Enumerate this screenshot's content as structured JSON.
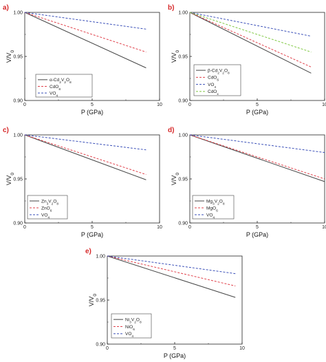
{
  "chart_data": [
    {
      "type": "line",
      "panel": "a)",
      "xlabel": "P (GPa)",
      "ylabel": "V/V",
      "ylabel_sub": "0",
      "xlim": [
        0,
        10
      ],
      "ylim": [
        0.9,
        1.0
      ],
      "xticks": [
        "0",
        "5",
        "10"
      ],
      "yticks": [
        "0.90",
        "0.95",
        "1.00"
      ],
      "legend_position": "bottom-right",
      "series": [
        {
          "name": "α-Cd",
          "sub": "2",
          "name2": "V",
          "sub2": "2",
          "name3": "O",
          "sub3": "8",
          "color": "#444444",
          "dash": "",
          "x": [
            0,
            9
          ],
          "y": [
            1.0,
            0.937
          ]
        },
        {
          "name": "CdO",
          "sub": "8",
          "name2": "",
          "sub2": "",
          "name3": "",
          "sub3": "",
          "color": "#e0404a",
          "dash": "3,2",
          "x": [
            0,
            9
          ],
          "y": [
            1.0,
            0.955
          ]
        },
        {
          "name": "VO",
          "sub": "4",
          "name2": "",
          "sub2": "",
          "name3": "",
          "sub3": "",
          "color": "#3a4fb8",
          "dash": "3,2",
          "x": [
            0,
            9
          ],
          "y": [
            1.0,
            0.981
          ]
        }
      ]
    },
    {
      "type": "line",
      "panel": "b)",
      "xlabel": "P (GPa)",
      "ylabel": "V/V",
      "ylabel_sub": "0",
      "xlim": [
        0,
        10
      ],
      "ylim": [
        0.9,
        1.0
      ],
      "xticks": [
        "0",
        "5",
        "10"
      ],
      "yticks": [
        "0.90",
        "0.95",
        "1.00"
      ],
      "legend_position": "bottom-right",
      "series": [
        {
          "name": "β-Cd",
          "sub": "2",
          "name2": "V",
          "sub2": "2",
          "name3": "O",
          "sub3": "8",
          "color": "#444444",
          "dash": "",
          "x": [
            0,
            9
          ],
          "y": [
            1.0,
            0.931
          ]
        },
        {
          "name": "CdO",
          "sub": "6",
          "name2": "",
          "sub2": "",
          "name3": "",
          "sub3": "",
          "color": "#e0404a",
          "dash": "3,2",
          "x": [
            0,
            9
          ],
          "y": [
            1.0,
            0.938
          ]
        },
        {
          "name": "VO",
          "sub": "4",
          "name2": "",
          "sub2": "",
          "name3": "",
          "sub3": "",
          "color": "#3a4fb8",
          "dash": "3,2",
          "x": [
            0,
            9
          ],
          "y": [
            1.0,
            0.973
          ]
        },
        {
          "name": "CdO",
          "sub": "x",
          "name2": "",
          "sub2": "",
          "name3": "",
          "sub3": "",
          "color": "#7fc842",
          "dash": "3,2",
          "x": [
            0,
            9
          ],
          "y": [
            1.0,
            0.955
          ]
        }
      ]
    },
    {
      "type": "line",
      "panel": "c)",
      "xlabel": "P (GPa)",
      "ylabel": "V/V",
      "ylabel_sub": "0",
      "xlim": [
        0,
        10
      ],
      "ylim": [
        0.9,
        1.0
      ],
      "xticks": [
        "0",
        "5",
        "10"
      ],
      "yticks": [
        "0.90",
        "0.95",
        "1.00"
      ],
      "legend_position": "bottom-left",
      "series": [
        {
          "name": "Zn",
          "sub": "3",
          "name2": "V",
          "sub2": "2",
          "name3": "O",
          "sub3": "8",
          "color": "#444444",
          "dash": "",
          "x": [
            0,
            9
          ],
          "y": [
            1.0,
            0.949
          ]
        },
        {
          "name": "ZnO",
          "sub": "6",
          "name2": "",
          "sub2": "",
          "name3": "",
          "sub3": "",
          "color": "#e0404a",
          "dash": "3,2",
          "x": [
            0,
            9
          ],
          "y": [
            1.0,
            0.955
          ]
        },
        {
          "name": "VO",
          "sub": "4",
          "name2": "",
          "sub2": "",
          "name3": "",
          "sub3": "",
          "color": "#3a4fb8",
          "dash": "3,2",
          "x": [
            0,
            9
          ],
          "y": [
            1.0,
            0.983
          ]
        }
      ]
    },
    {
      "type": "line",
      "panel": "d)",
      "xlabel": "P (GPa)",
      "ylabel": "V/V",
      "ylabel_sub": "0",
      "xlim": [
        0,
        10
      ],
      "ylim": [
        0.9,
        1.0
      ],
      "xticks": [
        "0",
        "5",
        "10"
      ],
      "yticks": [
        "0.90",
        "0.95",
        "1.00"
      ],
      "legend_position": "bottom-left",
      "series": [
        {
          "name": "Mg",
          "sub": "3",
          "name2": "V",
          "sub2": "2",
          "name3": "O",
          "sub3": "8",
          "color": "#444444",
          "dash": "",
          "x": [
            0,
            10
          ],
          "y": [
            1.0,
            0.947
          ]
        },
        {
          "name": "MgO",
          "sub": "6",
          "name2": "",
          "sub2": "",
          "name3": "",
          "sub3": "",
          "color": "#e0404a",
          "dash": "3,2",
          "x": [
            0,
            10
          ],
          "y": [
            1.0,
            0.95
          ]
        },
        {
          "name": "VO",
          "sub": "4",
          "name2": "",
          "sub2": "",
          "name3": "",
          "sub3": "",
          "color": "#3a4fb8",
          "dash": "3,2",
          "x": [
            0,
            10
          ],
          "y": [
            1.0,
            0.98
          ]
        }
      ]
    },
    {
      "type": "line",
      "panel": "e)",
      "xlabel": "P (GPa)",
      "ylabel": "V/V",
      "ylabel_sub": "0",
      "xlim": [
        0,
        10
      ],
      "ylim": [
        0.9,
        1.0
      ],
      "xticks": [
        "0",
        "5",
        "10"
      ],
      "yticks": [
        "0.90",
        "0.95",
        "1.00"
      ],
      "legend_position": "bottom-left",
      "series": [
        {
          "name": "Ni",
          "sub": "3",
          "name2": "V",
          "sub2": "2",
          "name3": "O",
          "sub3": "8",
          "color": "#444444",
          "dash": "",
          "x": [
            0,
            9.5
          ],
          "y": [
            1.0,
            0.953
          ]
        },
        {
          "name": "NiO",
          "sub": "6",
          "name2": "",
          "sub2": "",
          "name3": "",
          "sub3": "",
          "color": "#e0404a",
          "dash": "3,2",
          "x": [
            0,
            9.5
          ],
          "y": [
            1.0,
            0.966
          ]
        },
        {
          "name": "VO",
          "sub": "4",
          "name2": "",
          "sub2": "",
          "name3": "",
          "sub3": "",
          "color": "#3a4fb8",
          "dash": "3,2",
          "x": [
            0,
            9.5
          ],
          "y": [
            1.0,
            0.98
          ]
        }
      ]
    }
  ]
}
